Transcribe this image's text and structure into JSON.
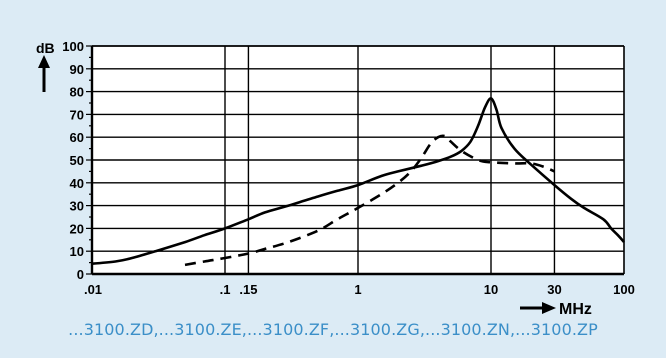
{
  "chart_data": {
    "type": "line",
    "title": "",
    "ylabel": "dB",
    "xlabel": "MHz",
    "xscale": "log",
    "xlim": [
      0.01,
      100
    ],
    "ylim": [
      0,
      100
    ],
    "grid": true,
    "x_ticks": [
      0.01,
      0.1,
      0.15,
      1,
      10,
      30,
      100
    ],
    "x_tick_labels": [
      ".01",
      ".1",
      ".15",
      "1",
      "10",
      "30",
      "100"
    ],
    "y_ticks": [
      0,
      10,
      20,
      30,
      40,
      50,
      60,
      70,
      80,
      90,
      100
    ],
    "y_tick_labels": [
      "0",
      "10",
      "20",
      "30",
      "40",
      "50",
      "60",
      "70",
      "80",
      "90",
      "100"
    ],
    "series": [
      {
        "style": "solid",
        "color": "#000000",
        "points": [
          [
            0.01,
            4.5
          ],
          [
            0.015,
            5.5
          ],
          [
            0.02,
            7
          ],
          [
            0.03,
            10
          ],
          [
            0.05,
            14
          ],
          [
            0.07,
            17
          ],
          [
            0.1,
            20
          ],
          [
            0.15,
            24
          ],
          [
            0.2,
            27
          ],
          [
            0.3,
            30
          ],
          [
            0.5,
            34
          ],
          [
            0.7,
            36.5
          ],
          [
            1,
            39
          ],
          [
            1.5,
            43
          ],
          [
            2,
            45
          ],
          [
            3,
            47.5
          ],
          [
            4,
            49.5
          ],
          [
            5,
            51.5
          ],
          [
            6,
            54
          ],
          [
            7,
            58
          ],
          [
            8,
            65
          ],
          [
            9,
            73
          ],
          [
            10,
            77
          ],
          [
            11,
            72
          ],
          [
            12,
            64
          ],
          [
            15,
            55
          ],
          [
            20,
            48
          ],
          [
            30,
            39
          ],
          [
            40,
            33
          ],
          [
            50,
            29
          ],
          [
            70,
            24
          ],
          [
            80,
            20
          ],
          [
            90,
            17
          ],
          [
            100,
            14
          ]
        ]
      },
      {
        "style": "dashed",
        "color": "#000000",
        "points": [
          [
            0.05,
            4
          ],
          [
            0.07,
            5.5
          ],
          [
            0.1,
            7
          ],
          [
            0.15,
            9
          ],
          [
            0.2,
            11
          ],
          [
            0.3,
            14
          ],
          [
            0.5,
            19
          ],
          [
            0.7,
            24
          ],
          [
            1,
            29
          ],
          [
            1.5,
            35
          ],
          [
            2,
            40
          ],
          [
            2.5,
            45
          ],
          [
            3,
            51
          ],
          [
            3.5,
            57
          ],
          [
            4,
            60
          ],
          [
            4.5,
            60.5
          ],
          [
            5,
            58
          ],
          [
            6,
            54
          ],
          [
            8,
            50
          ],
          [
            10,
            49
          ],
          [
            15,
            48.5
          ],
          [
            20,
            48.5
          ],
          [
            25,
            47
          ],
          [
            30,
            45
          ]
        ]
      }
    ]
  },
  "caption": "...3100.ZD,...3100.ZE,...3100.ZF,...3100.ZG,...3100.ZN,...3100.ZP"
}
